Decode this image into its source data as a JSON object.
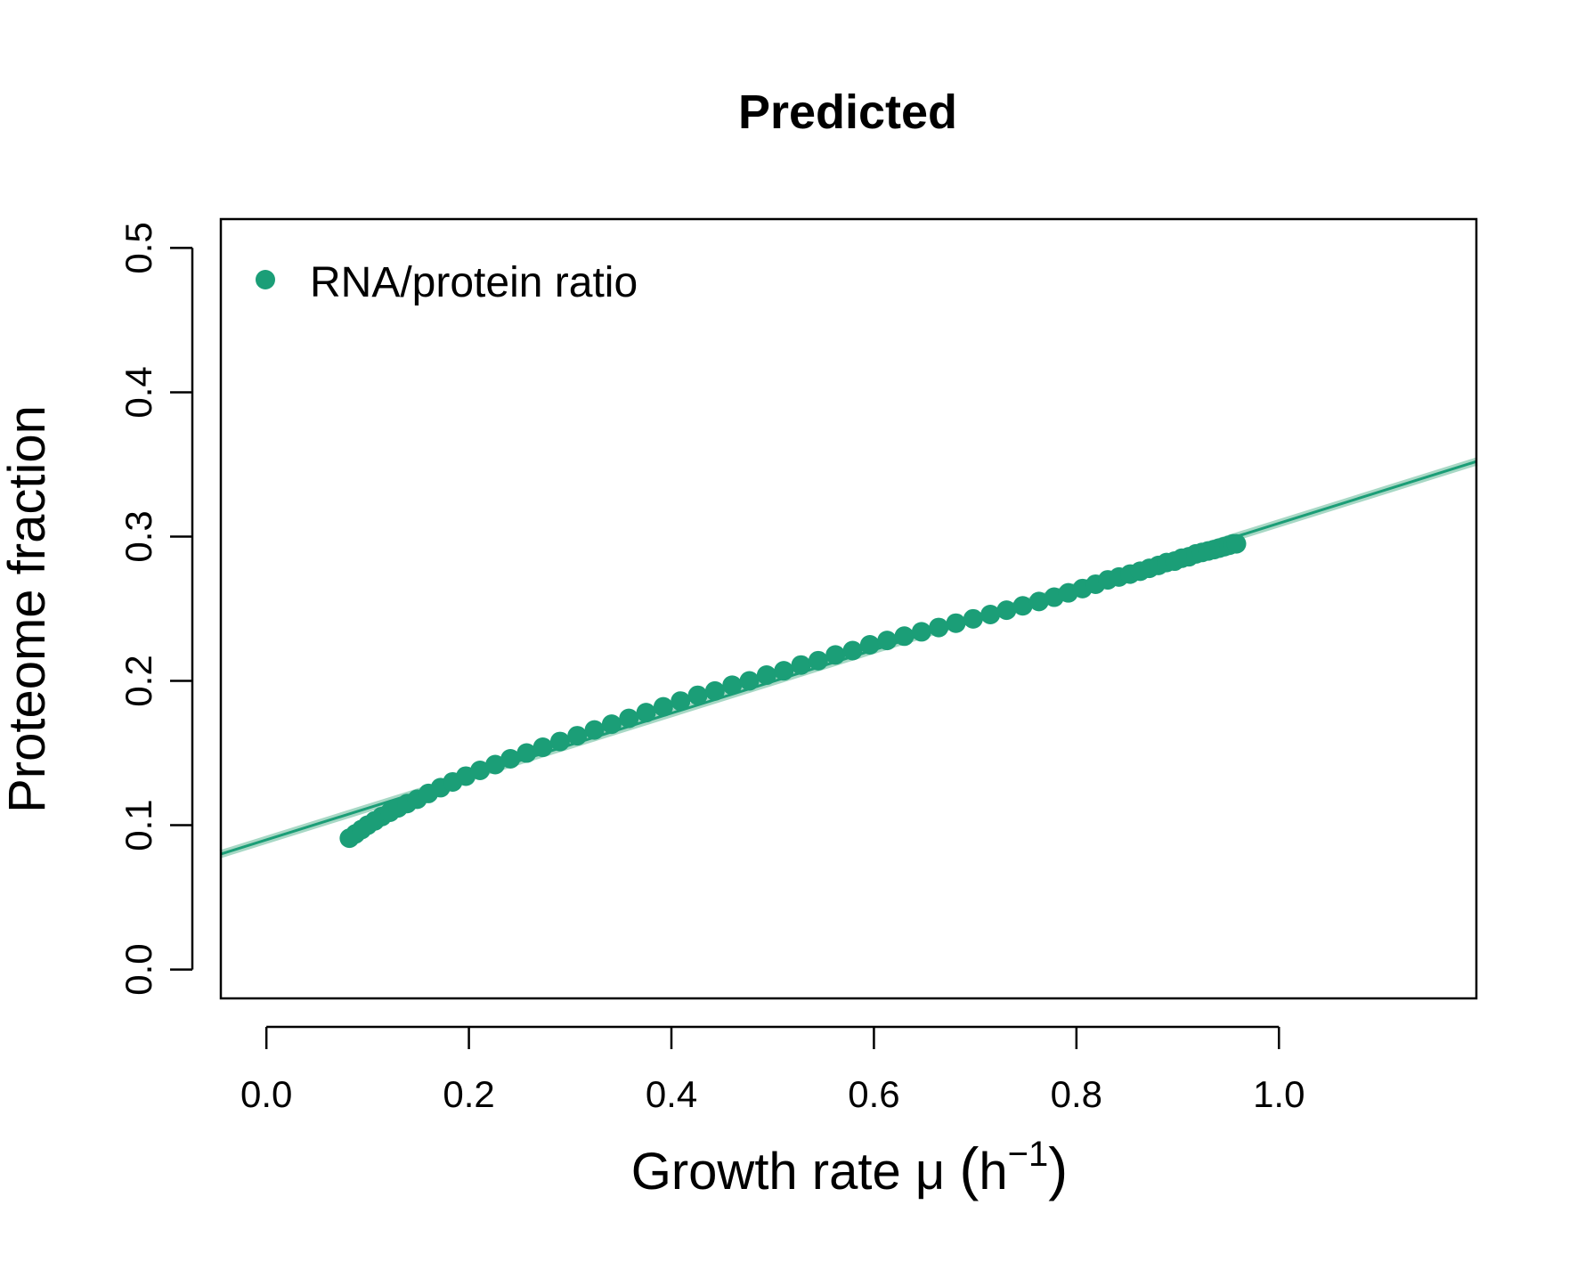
{
  "chart_data": {
    "type": "scatter",
    "title": "Predicted",
    "xlabel": "Growth rate μ (h⁻¹)",
    "xlabel_parts": {
      "main": "Growth rate μ ",
      "open": "(",
      "h": "h",
      "sup": "−1",
      "close": ")"
    },
    "ylabel": "Proteome fraction",
    "xlim": [
      -0.045,
      1.195
    ],
    "ylim": [
      -0.02,
      0.52
    ],
    "x_ticks": [
      0.0,
      0.2,
      0.4,
      0.6,
      0.8,
      1.0
    ],
    "x_tick_labels": [
      "0.0",
      "0.2",
      "0.4",
      "0.6",
      "0.8",
      "1.0"
    ],
    "y_ticks": [
      0.0,
      0.1,
      0.2,
      0.3,
      0.4,
      0.5
    ],
    "y_tick_labels": [
      "0.0",
      "0.1",
      "0.2",
      "0.3",
      "0.4",
      "0.5"
    ],
    "legend": {
      "position": "top-left",
      "entries": [
        "RNA/protein ratio"
      ]
    },
    "grid": false,
    "series": [
      {
        "name": "RNA/protein ratio",
        "color": "#1b9e77",
        "x": [
          0.082,
          0.088,
          0.094,
          0.1,
          0.107,
          0.114,
          0.122,
          0.13,
          0.139,
          0.149,
          0.16,
          0.172,
          0.184,
          0.197,
          0.211,
          0.226,
          0.241,
          0.257,
          0.273,
          0.29,
          0.307,
          0.324,
          0.341,
          0.358,
          0.375,
          0.392,
          0.409,
          0.426,
          0.443,
          0.46,
          0.477,
          0.494,
          0.511,
          0.528,
          0.545,
          0.562,
          0.579,
          0.596,
          0.613,
          0.63,
          0.647,
          0.664,
          0.681,
          0.698,
          0.715,
          0.731,
          0.747,
          0.763,
          0.778,
          0.792,
          0.806,
          0.819,
          0.831,
          0.842,
          0.853,
          0.863,
          0.872,
          0.881,
          0.889,
          0.897,
          0.904,
          0.911,
          0.918,
          0.924,
          0.93,
          0.936,
          0.941,
          0.946,
          0.951,
          0.955,
          0.958
        ],
        "y": [
          0.091,
          0.094,
          0.097,
          0.1,
          0.103,
          0.106,
          0.109,
          0.112,
          0.115,
          0.118,
          0.122,
          0.126,
          0.13,
          0.134,
          0.138,
          0.142,
          0.146,
          0.15,
          0.154,
          0.158,
          0.162,
          0.166,
          0.17,
          0.174,
          0.178,
          0.182,
          0.186,
          0.19,
          0.193,
          0.197,
          0.2,
          0.204,
          0.207,
          0.211,
          0.214,
          0.218,
          0.221,
          0.225,
          0.228,
          0.231,
          0.234,
          0.237,
          0.24,
          0.243,
          0.246,
          0.249,
          0.252,
          0.255,
          0.258,
          0.261,
          0.264,
          0.267,
          0.27,
          0.272,
          0.274,
          0.276,
          0.278,
          0.28,
          0.282,
          0.283,
          0.285,
          0.286,
          0.288,
          0.289,
          0.29,
          0.291,
          0.292,
          0.293,
          0.294,
          0.295,
          0.295
        ]
      }
    ],
    "fit_line": {
      "color": "#1b9e77",
      "band_color": "#a8d8c5",
      "x": [
        -0.045,
        1.195
      ],
      "y": [
        0.08,
        0.352
      ]
    }
  }
}
